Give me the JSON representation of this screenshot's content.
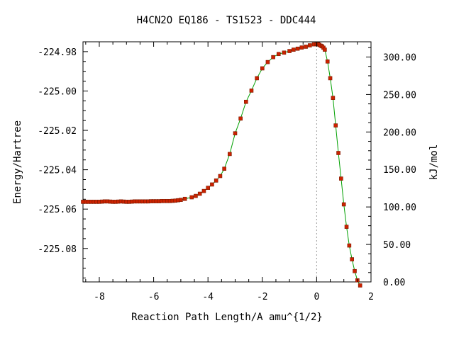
{
  "chart_data": {
    "type": "line",
    "title": "H4CN2O   EQ186 - TS1523 - DDC444",
    "xlabel": "Reaction Path Length/A amu^{1/2}",
    "ylabel": "Energy/Hartree",
    "y2label": "kJ/mol",
    "xlim": [
      -8.6,
      2.0
    ],
    "ylim": [
      -225.097,
      -224.975
    ],
    "y2lim": [
      0.0,
      320.3
    ],
    "x_ticks": [
      -8,
      -6,
      -4,
      -2,
      0,
      2
    ],
    "x_tick_labels": [
      "-8",
      "-6",
      "-4",
      "-2",
      "0",
      "2"
    ],
    "y_ticks": [
      -224.98,
      -225.0,
      -225.02,
      -225.04,
      -225.06,
      -225.08
    ],
    "y_tick_labels": [
      "-224.98",
      "-225.00",
      "-225.02",
      "-225.04",
      "-225.06",
      "-225.08"
    ],
    "y2_ticks": [
      300,
      250,
      200,
      150,
      100,
      50,
      0
    ],
    "y2_tick_labels": [
      "300.00",
      "250.00",
      "200.00",
      "150.00",
      "100.00",
      "50.00",
      "0.00"
    ],
    "ts_marker_x": 0.0,
    "grid": false,
    "line_color": "#00a000",
    "marker_color": "#cc2200",
    "ts_line_color": "#999999",
    "series": [
      {
        "x": [
          -8.6,
          -8.5,
          -8.4,
          -8.3,
          -8.2,
          -8.1,
          -8.0,
          -7.9,
          -7.8,
          -7.7,
          -7.6,
          -7.5,
          -7.4,
          -7.3,
          -7.2,
          -7.1,
          -7.0,
          -6.9,
          -6.8,
          -6.7,
          -6.6,
          -6.5,
          -6.4,
          -6.3,
          -6.2,
          -6.1,
          -6.0,
          -5.9,
          -5.8,
          -5.7,
          -5.6,
          -5.5,
          -5.4,
          -5.3,
          -5.2,
          -5.1,
          -5.0,
          -4.85,
          -4.6,
          -4.45,
          -4.3,
          -4.15,
          -4.0,
          -3.85,
          -3.7,
          -3.55,
          -3.4,
          -3.2,
          -3.0,
          -2.8,
          -2.6,
          -2.4,
          -2.2,
          -2.0,
          -1.8,
          -1.6,
          -1.4,
          -1.2,
          -1.0,
          -0.85,
          -0.7,
          -0.55,
          -0.4,
          -0.25,
          -0.1,
          0.0,
          0.05,
          0.1,
          0.15,
          0.2,
          0.25,
          0.3,
          0.4,
          0.5,
          0.6,
          0.7,
          0.8,
          0.9,
          1.0,
          1.1,
          1.2,
          1.3,
          1.4,
          1.5,
          1.6
        ],
        "y": [
          -225.0563,
          -225.0563,
          -225.0563,
          -225.0563,
          -225.0563,
          -225.0563,
          -225.0563,
          -225.0562,
          -225.0561,
          -225.0561,
          -225.0562,
          -225.0563,
          -225.0563,
          -225.0562,
          -225.0561,
          -225.0562,
          -225.0563,
          -225.0563,
          -225.0562,
          -225.0561,
          -225.0561,
          -225.0561,
          -225.0561,
          -225.0561,
          -225.0561,
          -225.056,
          -225.056,
          -225.056,
          -225.056,
          -225.0559,
          -225.0559,
          -225.0559,
          -225.0559,
          -225.0558,
          -225.0557,
          -225.0555,
          -225.0553,
          -225.0548,
          -225.054,
          -225.0533,
          -225.0522,
          -225.0508,
          -225.0492,
          -225.0475,
          -225.0455,
          -225.0432,
          -225.0395,
          -225.032,
          -225.0215,
          -225.014,
          -225.0055,
          -224.9998,
          -224.9935,
          -224.9885,
          -224.9853,
          -224.9828,
          -224.9812,
          -224.9805,
          -224.9797,
          -224.979,
          -224.9785,
          -224.9779,
          -224.9775,
          -224.9768,
          -224.9763,
          -224.9762,
          -224.9762,
          -224.9765,
          -224.977,
          -224.9773,
          -224.978,
          -224.979,
          -224.985,
          -224.9935,
          -225.0035,
          -225.0175,
          -225.0315,
          -225.0445,
          -225.0576,
          -225.069,
          -225.0785,
          -225.0855,
          -225.0915,
          -225.0962,
          -225.0988
        ]
      }
    ]
  }
}
